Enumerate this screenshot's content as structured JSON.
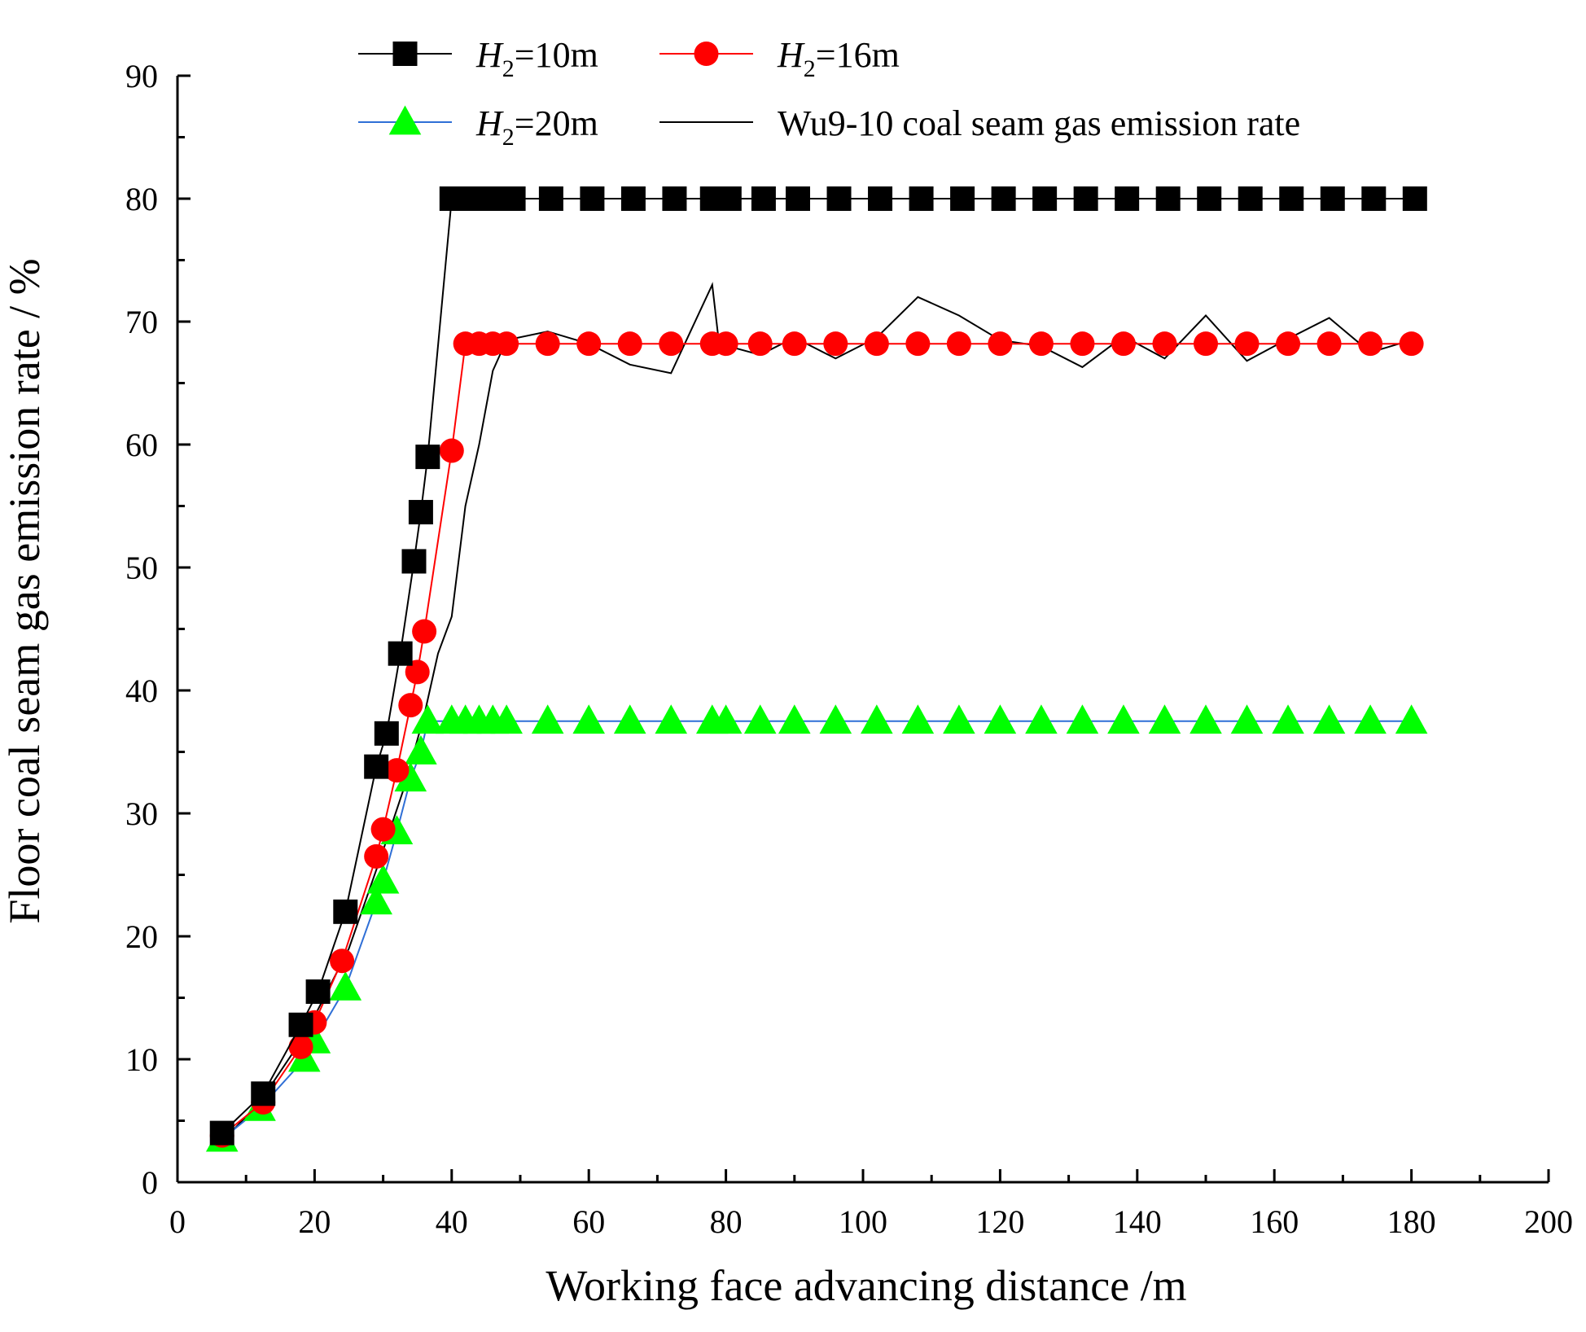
{
  "chart_data": {
    "type": "line",
    "title": "",
    "xlabel": "Working face advancing distance /m",
    "ylabel": "Floor coal seam gas emission rate / %",
    "xlim": [
      0,
      200
    ],
    "ylim": [
      0,
      90
    ],
    "x_ticks": [
      "0",
      "20",
      "40",
      "60",
      "80",
      "100",
      "120",
      "140",
      "160",
      "180",
      "200"
    ],
    "y_ticks": [
      "0",
      "10",
      "20",
      "30",
      "40",
      "50",
      "60",
      "70",
      "80",
      "90"
    ],
    "legend_position": "top",
    "series": [
      {
        "name": "H2=10m",
        "legend_italic": "H",
        "legend_sub": "2",
        "legend_rest": "=10m",
        "color": "#000000",
        "marker": "square",
        "points": [
          [
            6.5,
            4
          ],
          [
            12.5,
            7.2
          ],
          [
            18,
            12.8
          ],
          [
            20.5,
            15.5
          ],
          [
            24.5,
            22
          ],
          [
            29,
            33.8
          ],
          [
            30.5,
            36.5
          ],
          [
            32.5,
            43
          ],
          [
            34.5,
            50.5
          ],
          [
            35.5,
            54.5
          ],
          [
            36.5,
            59
          ],
          [
            40,
            80
          ],
          [
            42,
            80
          ],
          [
            43.5,
            80
          ],
          [
            45,
            80
          ],
          [
            47,
            80
          ],
          [
            49,
            80
          ],
          [
            54.5,
            80
          ],
          [
            60.5,
            80
          ],
          [
            66.5,
            80
          ],
          [
            72.5,
            80
          ],
          [
            78,
            80
          ],
          [
            80.5,
            80
          ],
          [
            85.5,
            80
          ],
          [
            90.5,
            80
          ],
          [
            96.5,
            80
          ],
          [
            102.5,
            80
          ],
          [
            108.5,
            80
          ],
          [
            114.5,
            80
          ],
          [
            120.5,
            80
          ],
          [
            126.5,
            80
          ],
          [
            132.5,
            80
          ],
          [
            138.5,
            80
          ],
          [
            144.5,
            80
          ],
          [
            150.5,
            80
          ],
          [
            156.5,
            80
          ],
          [
            162.5,
            80
          ],
          [
            168.5,
            80
          ],
          [
            174.5,
            80
          ],
          [
            180.5,
            80
          ]
        ]
      },
      {
        "name": "H2=16m",
        "legend_italic": "H",
        "legend_sub": "2",
        "legend_rest": "=16m",
        "color": "#ff0000",
        "marker": "circle",
        "points": [
          [
            6.5,
            3.8
          ],
          [
            12.5,
            6.5
          ],
          [
            18,
            11
          ],
          [
            20,
            13
          ],
          [
            24,
            18
          ],
          [
            29,
            26.5
          ],
          [
            30,
            28.7
          ],
          [
            32,
            33.5
          ],
          [
            34,
            38.8
          ],
          [
            35,
            41.5
          ],
          [
            36,
            44.8
          ],
          [
            40,
            59.5
          ],
          [
            42,
            68.2
          ],
          [
            44,
            68.2
          ],
          [
            46,
            68.2
          ],
          [
            48,
            68.2
          ],
          [
            54,
            68.2
          ],
          [
            60,
            68.2
          ],
          [
            66,
            68.2
          ],
          [
            72,
            68.2
          ],
          [
            78,
            68.2
          ],
          [
            80,
            68.2
          ],
          [
            85,
            68.2
          ],
          [
            90,
            68.2
          ],
          [
            96,
            68.2
          ],
          [
            102,
            68.2
          ],
          [
            108,
            68.2
          ],
          [
            114,
            68.2
          ],
          [
            120,
            68.2
          ],
          [
            126,
            68.2
          ],
          [
            132,
            68.2
          ],
          [
            138,
            68.2
          ],
          [
            144,
            68.2
          ],
          [
            150,
            68.2
          ],
          [
            156,
            68.2
          ],
          [
            162,
            68.2
          ],
          [
            168,
            68.2
          ],
          [
            174,
            68.2
          ],
          [
            180,
            68.2
          ]
        ]
      },
      {
        "name": "H2=20m",
        "legend_italic": "H",
        "legend_sub": "2",
        "legend_rest": "=20m",
        "color": "#2f6fd6",
        "marker_color": "#00ff00",
        "marker": "triangle",
        "points": [
          [
            6.5,
            3.5
          ],
          [
            12,
            6
          ],
          [
            18.5,
            10
          ],
          [
            20,
            11.5
          ],
          [
            24.5,
            15.8
          ],
          [
            29,
            22.8
          ],
          [
            30,
            24.5
          ],
          [
            32,
            28.5
          ],
          [
            34,
            32.8
          ],
          [
            35.5,
            35
          ],
          [
            36.5,
            37.5
          ],
          [
            40,
            37.5
          ],
          [
            42,
            37.5
          ],
          [
            44,
            37.5
          ],
          [
            46,
            37.5
          ],
          [
            48,
            37.5
          ],
          [
            54,
            37.5
          ],
          [
            60,
            37.5
          ],
          [
            66,
            37.5
          ],
          [
            72,
            37.5
          ],
          [
            78,
            37.5
          ],
          [
            80,
            37.5
          ],
          [
            85,
            37.5
          ],
          [
            90,
            37.5
          ],
          [
            96,
            37.5
          ],
          [
            102,
            37.5
          ],
          [
            108,
            37.5
          ],
          [
            114,
            37.5
          ],
          [
            120,
            37.5
          ],
          [
            126,
            37.5
          ],
          [
            132,
            37.5
          ],
          [
            138,
            37.5
          ],
          [
            144,
            37.5
          ],
          [
            150,
            37.5
          ],
          [
            156,
            37.5
          ],
          [
            162,
            37.5
          ],
          [
            168,
            37.5
          ],
          [
            174,
            37.5
          ],
          [
            180,
            37.5
          ]
        ]
      },
      {
        "name": "Wu9-10 coal seam gas emission rate",
        "legend_text": "Wu9-10 coal seam gas emission rate",
        "color": "#000000",
        "marker": "none",
        "points": [
          [
            6,
            3
          ],
          [
            12,
            6.5
          ],
          [
            18,
            11.5
          ],
          [
            20,
            13.5
          ],
          [
            25,
            19
          ],
          [
            30,
            27
          ],
          [
            33,
            32
          ],
          [
            36,
            38
          ],
          [
            38,
            43
          ],
          [
            40,
            46
          ],
          [
            42,
            55
          ],
          [
            44,
            60
          ],
          [
            46,
            66
          ],
          [
            48,
            68.5
          ],
          [
            54,
            69.2
          ],
          [
            60,
            68.2
          ],
          [
            66,
            66.5
          ],
          [
            72,
            65.8
          ],
          [
            78,
            73
          ],
          [
            79,
            68.2
          ],
          [
            85,
            67.3
          ],
          [
            90,
            68.7
          ],
          [
            96,
            67
          ],
          [
            102,
            68.7
          ],
          [
            108,
            72
          ],
          [
            114,
            70.5
          ],
          [
            120,
            68.5
          ],
          [
            126,
            68
          ],
          [
            132,
            66.3
          ],
          [
            138,
            68.8
          ],
          [
            144,
            67
          ],
          [
            150,
            70.5
          ],
          [
            156,
            66.8
          ],
          [
            162,
            68.6
          ],
          [
            168,
            70.3
          ],
          [
            174,
            67.5
          ],
          [
            180,
            68.5
          ]
        ]
      }
    ]
  }
}
